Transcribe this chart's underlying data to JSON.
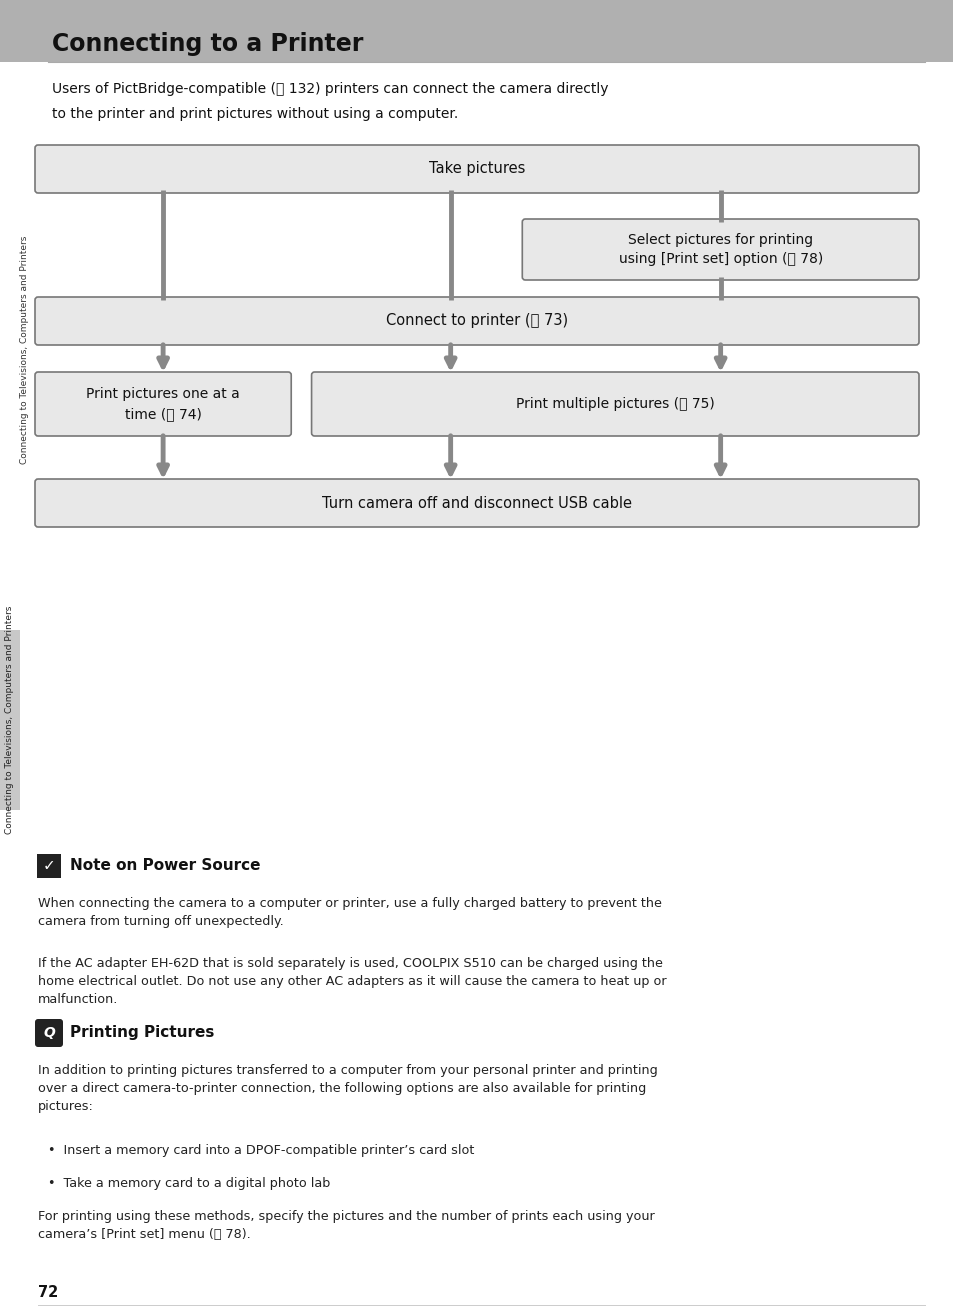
{
  "title": "Connecting to a Printer",
  "bg_color": "#ffffff",
  "header_bg": "#b0b0b0",
  "intro_text_line1": "Users of PictBridge-compatible (Ⓝ 132) printers can connect the camera directly",
  "intro_text_line2": "to the printer and print pictures without using a computer.",
  "diagram": {
    "box_fill": "#e8e8e8",
    "box_edge": "#777777",
    "arrow_color": "#888888",
    "take_label": "Take pictures",
    "select_label": "Select pictures for printing\nusing [Print set] option (Ⓝ 78)",
    "connect_label": "Connect to printer (Ⓝ 73)",
    "print1_label": "Print pictures one at a\ntime (Ⓝ 74)",
    "print2_label": "Print multiple pictures (Ⓝ 75)",
    "turn_label": "Turn camera off and disconnect USB cable"
  },
  "sidebar_text": "Connecting to Televisions, Computers and Printers",
  "sidebar_bg": "#c8c8c8",
  "note_title": "Note on Power Source",
  "note_text1": "When connecting the camera to a computer or printer, use a fully charged battery to prevent the\ncamera from turning off unexpectedly.",
  "note_text2": "If the AC adapter EH-62D that is sold separately is used, COOLPIX S510 can be charged using the\nhome electrical outlet. Do not use any other AC adapters as it will cause the camera to heat up or\nmalfunction.",
  "print_title": "Printing Pictures",
  "print_text1": "In addition to printing pictures transferred to a computer from your personal printer and printing\nover a direct camera-to-printer connection, the following options are also available for printing\npictures:",
  "bullet1": "Insert a memory card into a DPOF-compatible printer’s card slot",
  "bullet2": "Take a memory card to a digital photo lab",
  "print_text2": "For printing using these methods, specify the pictures and the number of prints each using your\ncamera’s [Print set] menu (Ⓝ 78).",
  "page_number": "72"
}
